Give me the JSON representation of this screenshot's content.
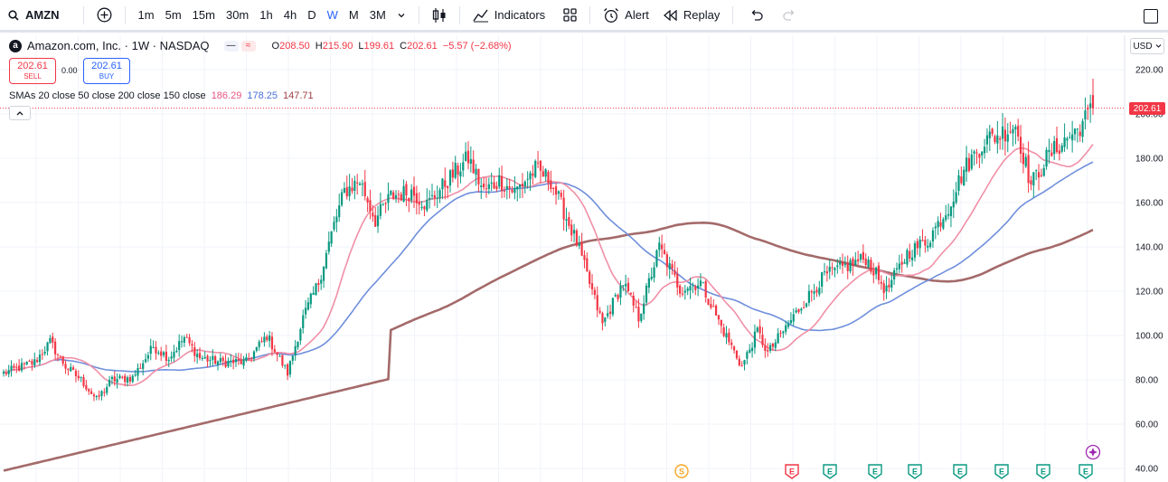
{
  "toolbar": {
    "symbol": "AMZN",
    "intervals": [
      "1m",
      "5m",
      "15m",
      "30m",
      "1h",
      "4h",
      "D",
      "W",
      "M",
      "3M"
    ],
    "active_interval": "W",
    "indicators_label": "Indicators",
    "alert_label": "Alert",
    "replay_label": "Replay"
  },
  "legend": {
    "title": "Amazon.com, Inc. · 1W · NASDAQ",
    "logo_letter": "a",
    "badge1": "—",
    "badge2": "≈",
    "open_label": "O",
    "open": "208.50",
    "high_label": "H",
    "high": "215.90",
    "low_label": "L",
    "low": "199.61",
    "close_label": "C",
    "close": "202.61",
    "change": "−5.57 (−2.68%)"
  },
  "trade": {
    "sell_price": "202.61",
    "sell_label": "SELL",
    "spread": "0.00",
    "buy_price": "202.61",
    "buy_label": "BUY"
  },
  "smas": {
    "label": "SMAs 20 close 50 close 200 close 150 close",
    "sma20": "186.29",
    "sma50": "178.25",
    "sma150": "147.71"
  },
  "currency": "USD",
  "last_price_tag": "202.61",
  "colors": {
    "up": "#089981",
    "down": "#f23645",
    "sma20": "#f08fa6",
    "sma50": "#6f8fdc",
    "sma150": "#a46a6a",
    "active": "#2962ff"
  },
  "chart_data": {
    "type": "candlestick",
    "ylim": [
      36,
      226
    ],
    "y_ticks": [
      40,
      60,
      80,
      100,
      120,
      140,
      160,
      180,
      200,
      220
    ],
    "y_tick_labels": [
      "40.00",
      "60.00",
      "80.00",
      "100.00",
      "120.00",
      "140.00",
      "160.00",
      "180.00",
      "200.00",
      "220.00"
    ],
    "last_price": 202.61,
    "anchors": [
      [
        0,
        83
      ],
      [
        12,
        88
      ],
      [
        18,
        97
      ],
      [
        24,
        86
      ],
      [
        30,
        80
      ],
      [
        36,
        71
      ],
      [
        42,
        80
      ],
      [
        50,
        81
      ],
      [
        58,
        95
      ],
      [
        64,
        90
      ],
      [
        70,
        99
      ],
      [
        76,
        90
      ],
      [
        84,
        88
      ],
      [
        94,
        88
      ],
      [
        102,
        100
      ],
      [
        110,
        83
      ],
      [
        116,
        108
      ],
      [
        122,
        124
      ],
      [
        128,
        150
      ],
      [
        132,
        165
      ],
      [
        138,
        170
      ],
      [
        144,
        152
      ],
      [
        150,
        163
      ],
      [
        158,
        165
      ],
      [
        164,
        159
      ],
      [
        172,
        170
      ],
      [
        180,
        180
      ],
      [
        186,
        165
      ],
      [
        192,
        170
      ],
      [
        198,
        165
      ],
      [
        206,
        175
      ],
      [
        212,
        170
      ],
      [
        222,
        142
      ],
      [
        232,
        105
      ],
      [
        240,
        124
      ],
      [
        246,
        108
      ],
      [
        254,
        140
      ],
      [
        262,
        121
      ],
      [
        270,
        124
      ],
      [
        278,
        104
      ],
      [
        286,
        86
      ],
      [
        292,
        102
      ],
      [
        296,
        92
      ],
      [
        302,
        102
      ],
      [
        310,
        115
      ],
      [
        318,
        127
      ],
      [
        326,
        131
      ],
      [
        334,
        135
      ],
      [
        342,
        120
      ],
      [
        350,
        137
      ],
      [
        358,
        143
      ],
      [
        366,
        158
      ],
      [
        372,
        175
      ],
      [
        380,
        188
      ],
      [
        386,
        191
      ],
      [
        392,
        195
      ],
      [
        398,
        168
      ],
      [
        404,
        180
      ],
      [
        410,
        187
      ],
      [
        416,
        193
      ],
      [
        422,
        202.61
      ]
    ],
    "series": [
      {
        "name": "SMA 20",
        "value": 186.29
      },
      {
        "name": "SMA 50",
        "value": 178.25
      },
      {
        "name": "SMA 150",
        "value": 147.71
      }
    ],
    "events": [
      "S",
      "E",
      "E",
      "E",
      "E",
      "E",
      "E",
      "E",
      "E"
    ]
  }
}
